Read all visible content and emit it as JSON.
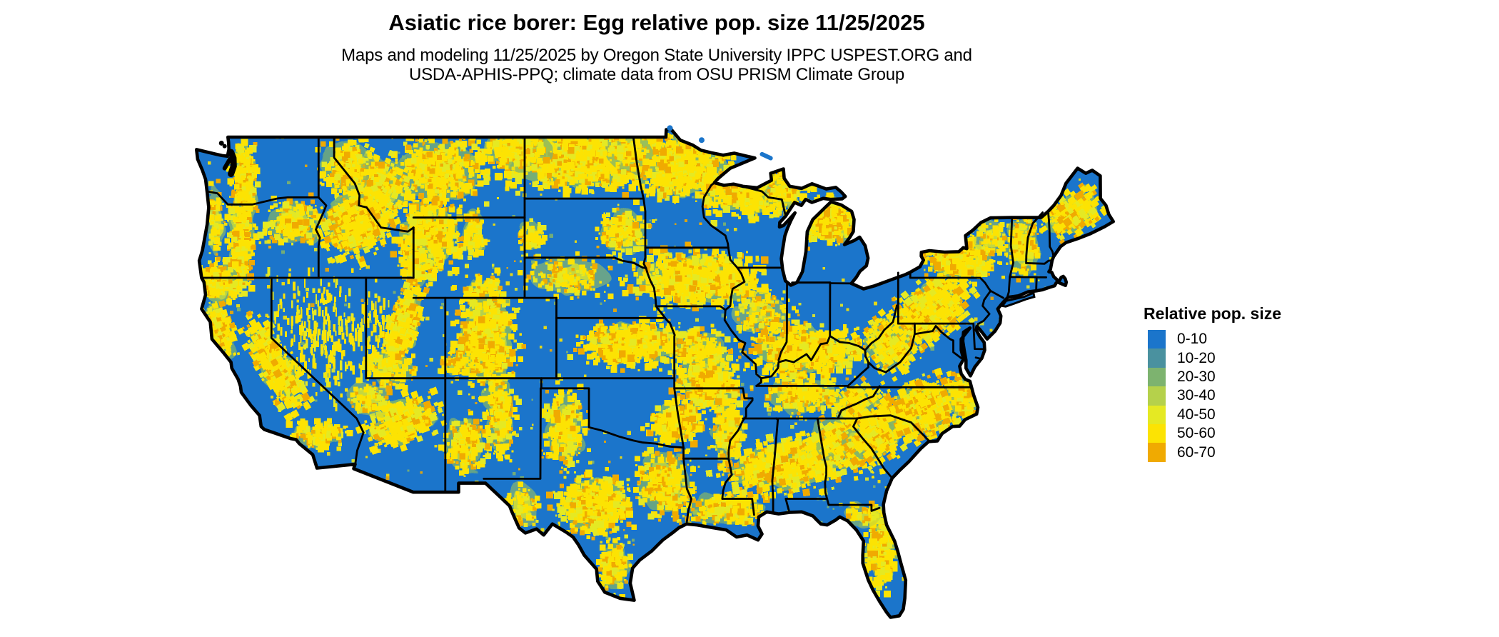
{
  "header": {
    "title": "Asiatic rice borer: Egg relative pop. size 11/25/2025",
    "subtitle_lines": [
      "Maps and modeling 11/25/2025 by Oregon State University IPPC USPEST.ORG and",
      "USDA-APHIS-PPQ; climate data from OSU PRISM Climate Group"
    ]
  },
  "legend": {
    "title": "Relative pop. size",
    "entries": [
      {
        "label": "0-10",
        "color": "#1b75cb"
      },
      {
        "label": "10-20",
        "color": "#4a919f"
      },
      {
        "label": "20-30",
        "color": "#7db36f"
      },
      {
        "label": "30-40",
        "color": "#b5d14b"
      },
      {
        "label": "40-50",
        "color": "#e5e923"
      },
      {
        "label": "50-60",
        "color": "#fce303"
      },
      {
        "label": "60-70",
        "color": "#f0aa01"
      }
    ]
  },
  "map": {
    "region": "Conterminous United States",
    "type": "raster choropleth",
    "base_color": "#1b75cb",
    "border_color": "#000000",
    "water_color": "#ffffff"
  }
}
